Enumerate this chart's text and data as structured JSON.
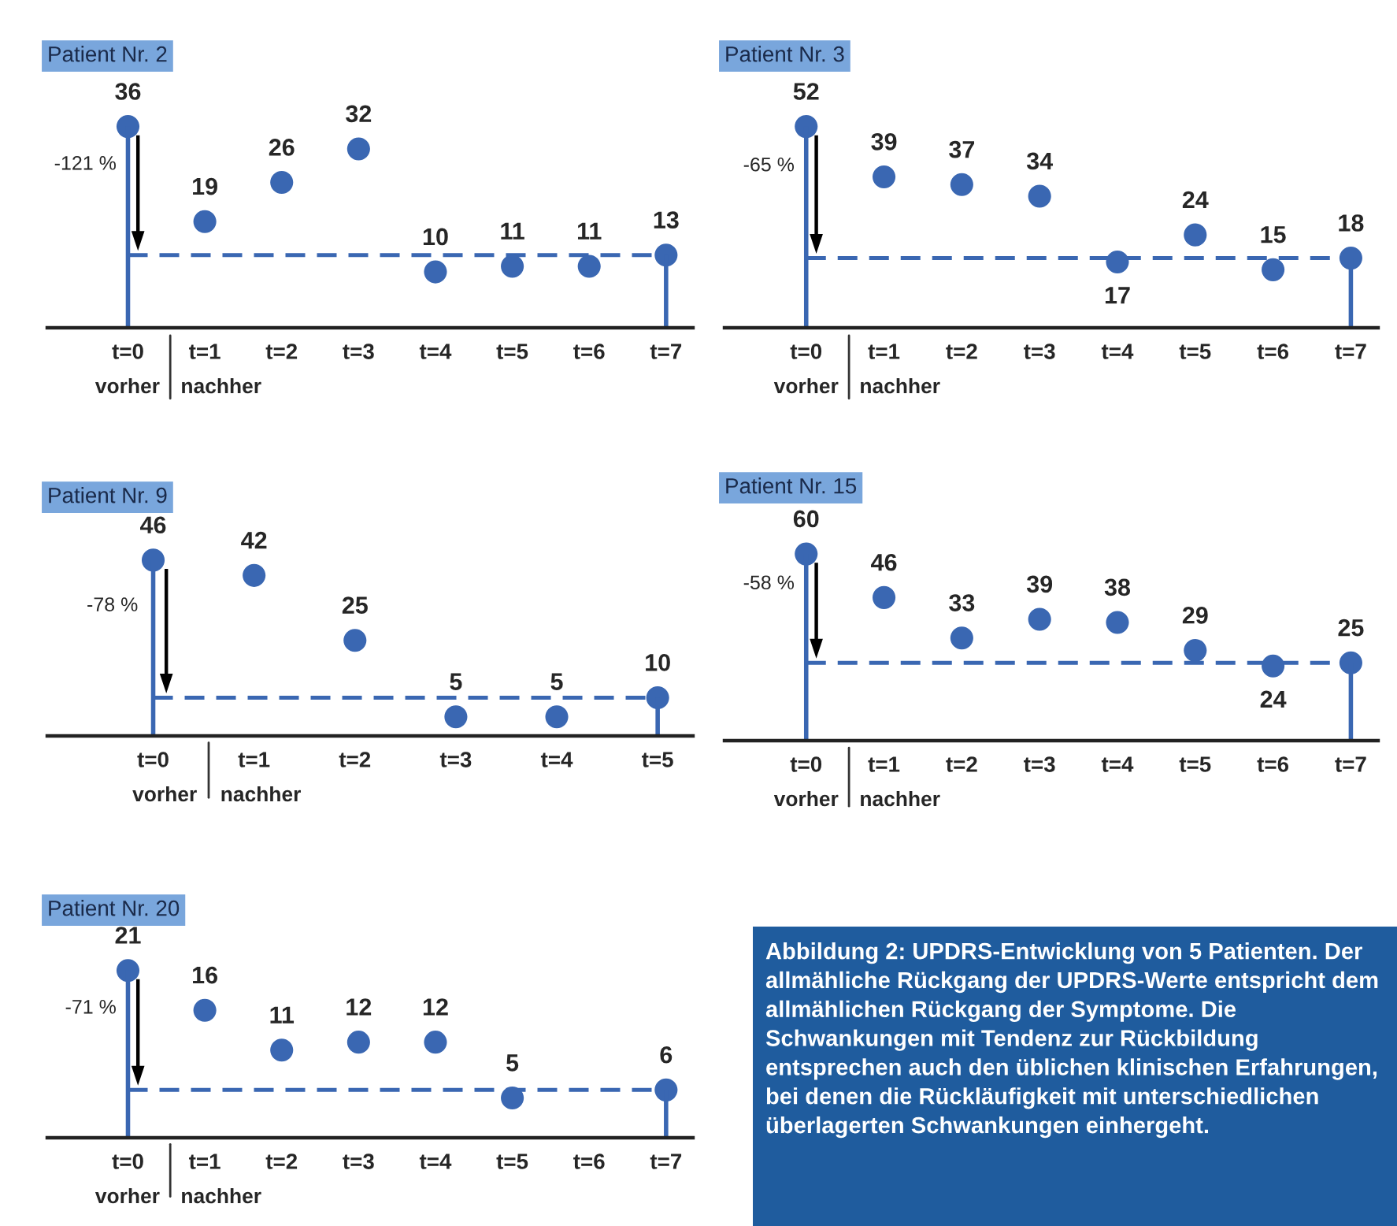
{
  "chart_data": [
    {
      "type": "scatter",
      "title": "Patient Nr. 2",
      "categories": [
        "t=0",
        "t=1",
        "t=2",
        "t=3",
        "t=4",
        "t=5",
        "t=6",
        "t=7"
      ],
      "tick_labels": "x",
      "data_labels": true,
      "grid": false,
      "series": [
        {
          "type": "lollipop",
          "color": "#3a67b2",
          "values": [
            36,
            null,
            null,
            null,
            null,
            null,
            null,
            13
          ]
        },
        {
          "type": "scatter",
          "color": "#3a67b2",
          "values": [
            null,
            19,
            26,
            32,
            10,
            11,
            11,
            null
          ]
        }
      ],
      "ref_lines": [
        {
          "axis": "y",
          "value": 13,
          "color": "#3a67b2",
          "line_style": "dashed"
        }
      ],
      "annotations": [
        "-121 %",
        "vorher",
        "nachher"
      ]
    },
    {
      "type": "scatter",
      "title": "Patient Nr. 3",
      "categories": [
        "t=0",
        "t=1",
        "t=2",
        "t=3",
        "t=4",
        "t=5",
        "t=6",
        "t=7"
      ],
      "tick_labels": "x",
      "data_labels": true,
      "grid": false,
      "series": [
        {
          "type": "lollipop",
          "color": "#3a67b2",
          "values": [
            52,
            null,
            null,
            null,
            null,
            null,
            null,
            18
          ]
        },
        {
          "type": "scatter",
          "color": "#3a67b2",
          "values": [
            null,
            39,
            37,
            34,
            17,
            24,
            15,
            null
          ]
        }
      ],
      "ref_lines": [
        {
          "axis": "y",
          "value": 18,
          "color": "#3a67b2",
          "line_style": "dashed"
        }
      ],
      "annotations": [
        "-65 %",
        "vorher",
        "nachher"
      ]
    },
    {
      "type": "scatter",
      "title": "Patient Nr. 9",
      "categories": [
        "t=0",
        "t=1",
        "t=2",
        "t=3",
        "t=4",
        "t=5"
      ],
      "tick_labels": "x",
      "data_labels": true,
      "grid": false,
      "series": [
        {
          "type": "lollipop",
          "color": "#3a67b2",
          "values": [
            46,
            null,
            null,
            null,
            null,
            10
          ]
        },
        {
          "type": "scatter",
          "color": "#3a67b2",
          "values": [
            null,
            42,
            25,
            5,
            5,
            null
          ]
        }
      ],
      "ref_lines": [
        {
          "axis": "y",
          "value": 10,
          "color": "#3a67b2",
          "line_style": "dashed"
        }
      ],
      "annotations": [
        "-78 %",
        "vorher",
        "nachher"
      ]
    },
    {
      "type": "scatter",
      "title": "Patient Nr. 15",
      "categories": [
        "t=0",
        "t=1",
        "t=2",
        "t=3",
        "t=4",
        "t=5",
        "t=6",
        "t=7"
      ],
      "tick_labels": "x",
      "data_labels": true,
      "grid": false,
      "series": [
        {
          "type": "lollipop",
          "color": "#3a67b2",
          "values": [
            60,
            null,
            null,
            null,
            null,
            null,
            null,
            25
          ]
        },
        {
          "type": "scatter",
          "color": "#3a67b2",
          "values": [
            null,
            46,
            33,
            39,
            38,
            29,
            24,
            null
          ]
        }
      ],
      "ref_lines": [
        {
          "axis": "y",
          "value": 25,
          "color": "#3a67b2",
          "line_style": "dashed"
        }
      ],
      "annotations": [
        "-58 %",
        "vorher",
        "nachher"
      ]
    },
    {
      "type": "scatter",
      "title": "Patient Nr. 20",
      "categories": [
        "t=0",
        "t=1",
        "t=2",
        "t=3",
        "t=4",
        "t=5",
        "t=6",
        "t=7"
      ],
      "tick_labels": "x",
      "data_labels": true,
      "grid": false,
      "series": [
        {
          "type": "lollipop",
          "color": "#3a67b2",
          "values": [
            21,
            null,
            null,
            null,
            null,
            null,
            null,
            6
          ]
        },
        {
          "type": "scatter",
          "color": "#3a67b2",
          "values": [
            null,
            16,
            11,
            12,
            12,
            5,
            null,
            null
          ]
        }
      ],
      "ref_lines": [
        {
          "axis": "y",
          "value": 6,
          "color": "#3a67b2",
          "line_style": "dashed"
        }
      ],
      "annotations": [
        "-71 %",
        "vorher",
        "nachher"
      ]
    },
    {
      "type": "other",
      "annotations": [
        "Abbildung 2: UPDRS-Entwicklung von 5 Patienten. Der allmähliche Rückgang der UPDRS-Werte entspricht dem allmählichen Rückgang der Symptome. Die Schwankungen mit Tendenz zur Rückbildung entsprechen auch den üblichen klinischen Erfahrungen, bei denen die Rückläufigkeit mit unterschiedlichen überlagerten Schwankungen einhergeht."
      ]
    }
  ]
}
